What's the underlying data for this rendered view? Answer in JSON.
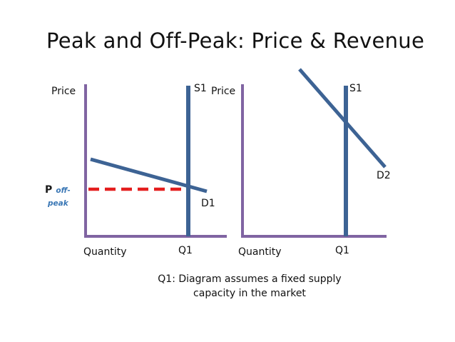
{
  "title": "Peak and Off-Peak: Price & Revenue",
  "left": {
    "y_label": "Price",
    "x_label": "Quantity",
    "supply_label": "S1",
    "demand_label": "D1",
    "q_label": "Q1",
    "price_label": "P",
    "price_sub_1": "off-",
    "price_sub_2": "peak"
  },
  "right": {
    "y_label": "Price",
    "x_label": "Quantity",
    "supply_label": "S1",
    "demand_label": "D2",
    "q_label": "Q1"
  },
  "note_line1": "Q1: Diagram assumes a fixed supply",
  "note_line2": "capacity in the market",
  "colors": {
    "axis": "#8064a2",
    "curve": "#3d6394",
    "price_line": "#e41e1e",
    "sub_text": "#3a77b5"
  }
}
